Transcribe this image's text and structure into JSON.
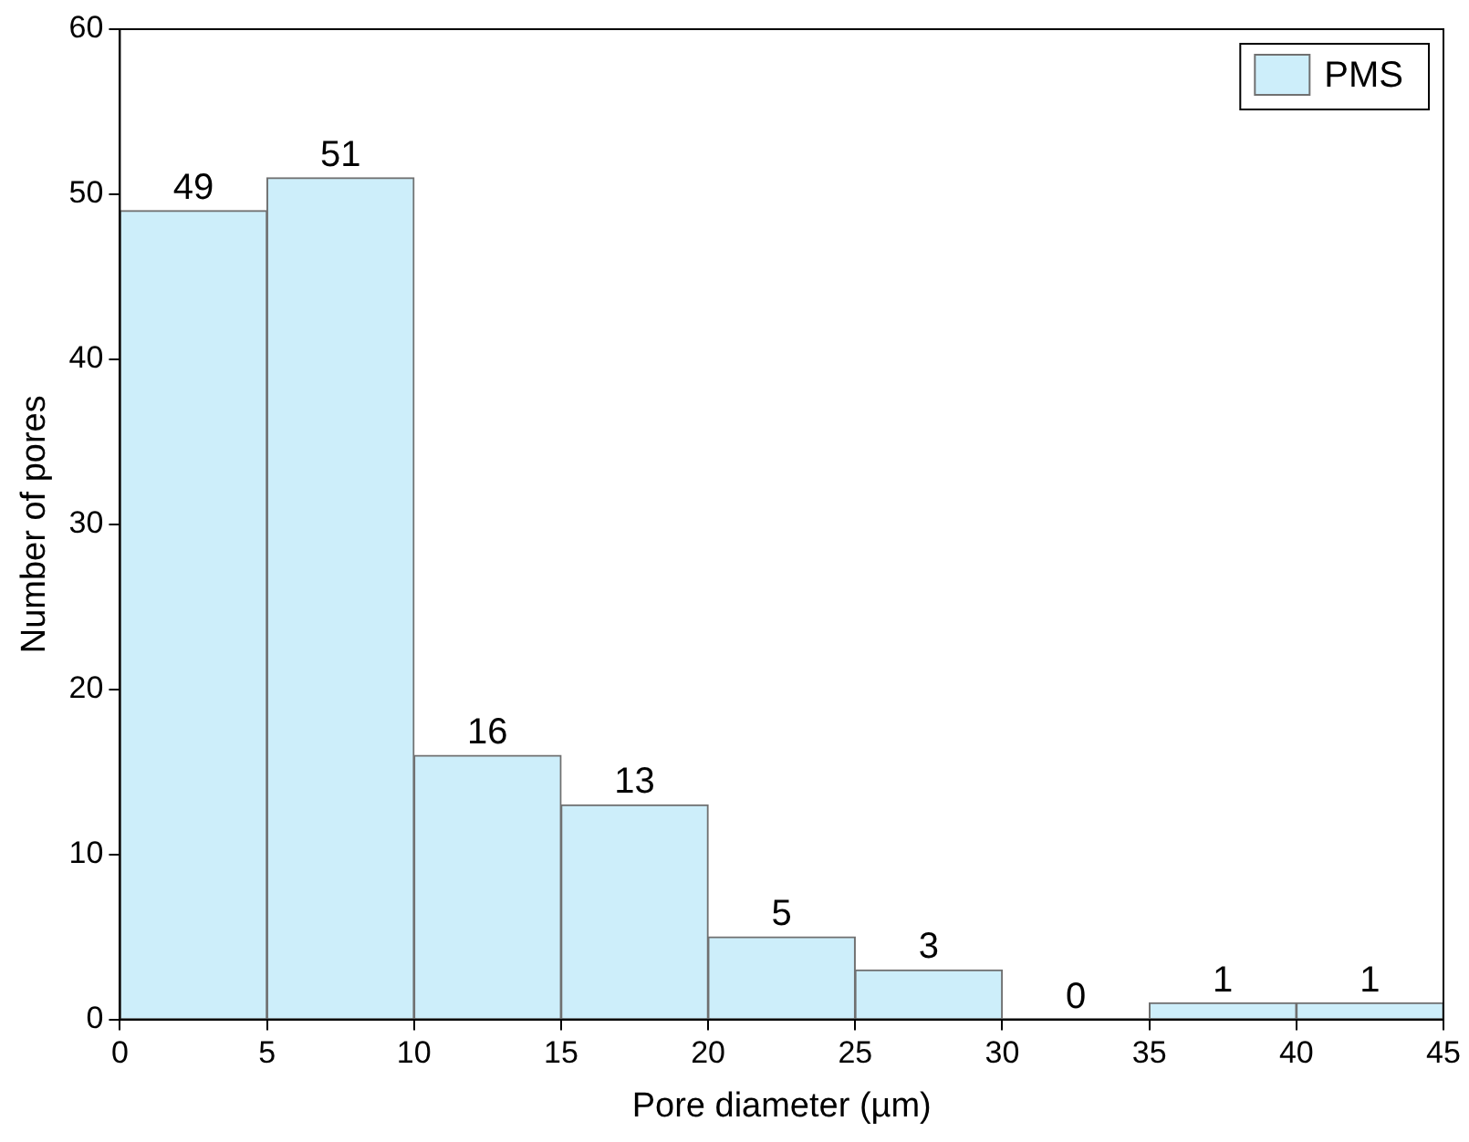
{
  "chart_data": {
    "type": "histogram",
    "xlabel": "Pore diameter (µm)",
    "ylabel": "Number of pores",
    "bins": [
      0,
      5,
      10,
      15,
      20,
      25,
      30,
      35,
      40,
      45
    ],
    "series": [
      {
        "name": "PMS",
        "color": "#cdeefa",
        "values": [
          49,
          51,
          16,
          13,
          5,
          3,
          0,
          1,
          1
        ]
      }
    ],
    "xlim": [
      0,
      45
    ],
    "xticks": [
      0,
      5,
      10,
      15,
      20,
      25,
      30,
      35,
      40,
      45
    ],
    "ylim": [
      0,
      60
    ],
    "yticks": [
      0,
      10,
      20,
      30,
      40,
      50,
      60
    ],
    "data_labels": true,
    "legend": "top right",
    "grid": false
  }
}
